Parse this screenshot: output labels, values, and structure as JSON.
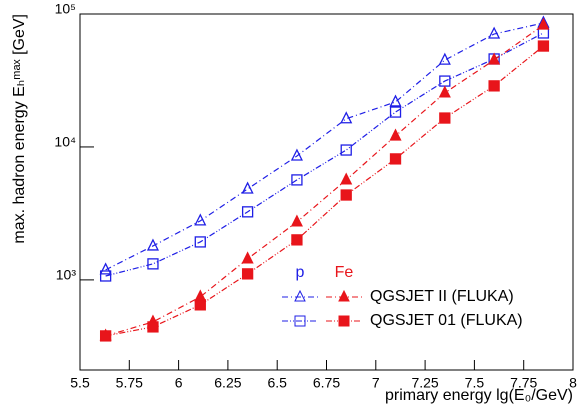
{
  "chart_data": {
    "type": "line",
    "x_label": "primary energy lg(E₀/GeV)",
    "y_label": "max. hadron energy Eₕᵐᵃˣ [GeV]",
    "xlim": [
      5.5,
      8
    ],
    "xticks": [
      5.5,
      5.75,
      6,
      6.25,
      6.5,
      6.75,
      7,
      7.25,
      7.5,
      7.75,
      8
    ],
    "ylim": [
      210,
      100000
    ],
    "log_y": true,
    "yticks": [
      {
        "value": 1000,
        "label": "10³"
      },
      {
        "value": 10000,
        "label": "10⁴"
      },
      {
        "value": 100000,
        "label": "10⁵"
      }
    ],
    "x": [
      5.63,
      5.87,
      6.11,
      6.35,
      6.6,
      6.85,
      7.1,
      7.35,
      7.6,
      7.85
    ],
    "series": [
      {
        "name": "QGSJET II (FLUKA)",
        "primary": "p",
        "color": "#1f1fe6",
        "marker": "triangle-open",
        "dash": "6 3 1 3",
        "values": [
          1190,
          1800,
          2780,
          4830,
          8550,
          16300,
          21800,
          45000,
          70700,
          85600
        ]
      },
      {
        "name": "QGSJET 01 (FLUKA)",
        "primary": "p",
        "color": "#1f1fe6",
        "marker": "square-open",
        "dash": "6 2 1 2 1 2",
        "values": [
          1070,
          1320,
          1930,
          3250,
          5650,
          9480,
          18300,
          31300,
          45900,
          72000
        ]
      },
      {
        "name": "QGSJET II (FLUKA)",
        "primary": "Fe",
        "color": "#e8151b",
        "marker": "triangle",
        "dash": "6 3 1 3",
        "values": [
          379,
          483,
          745,
          1440,
          2730,
          5650,
          12100,
          25500,
          45100,
          82600
        ]
      },
      {
        "name": "QGSJET 01 (FLUKA)",
        "primary": "Fe",
        "color": "#e8151b",
        "marker": "square",
        "dash": "6 2 1 2 1 2",
        "values": [
          379,
          443,
          649,
          1110,
          2000,
          4350,
          8130,
          16500,
          28800,
          57400
        ]
      }
    ]
  }
}
